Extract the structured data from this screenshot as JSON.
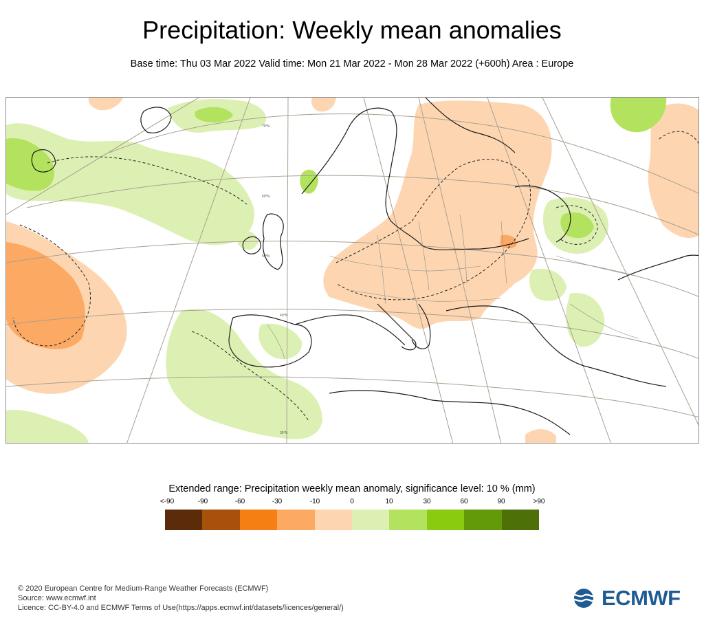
{
  "title": "Precipitation: Weekly mean anomalies",
  "subtitle": "Base time: Thu 03 Mar 2022 Valid time: Mon 21 Mar 2022 - Mon 28 Mar 2022 (+600h) Area : Europe",
  "map": {
    "graticule_labels": [
      "70°N",
      "60°N",
      "50°N",
      "40°N",
      "30°N"
    ]
  },
  "legend": {
    "title": "Extended range: Precipitation weekly mean anomaly, significance level: 10 % (mm)",
    "ticks": [
      "<-90",
      "-90",
      "-60",
      "-30",
      "-10",
      "0",
      "10",
      "30",
      "60",
      "90",
      ">90"
    ],
    "colors": [
      "#5c2b0a",
      "#a8510b",
      "#f57f13",
      "#fca964",
      "#fdd6b1",
      "#ddf0b3",
      "#b3e35e",
      "#8acb10",
      "#629a0a",
      "#4d7008"
    ]
  },
  "footer": {
    "line1": "© 2020 European Centre for Medium-Range Weather Forecasts (ECMWF)",
    "line2": "Source: www.ecmwf.int",
    "line3": "Licence: CC-BY-4.0 and ECMWF Terms of Use(https://apps.ecmwf.int/datasets/licences/general/)"
  },
  "logo": {
    "text": "ECMWF",
    "color": "#1e5b93"
  }
}
